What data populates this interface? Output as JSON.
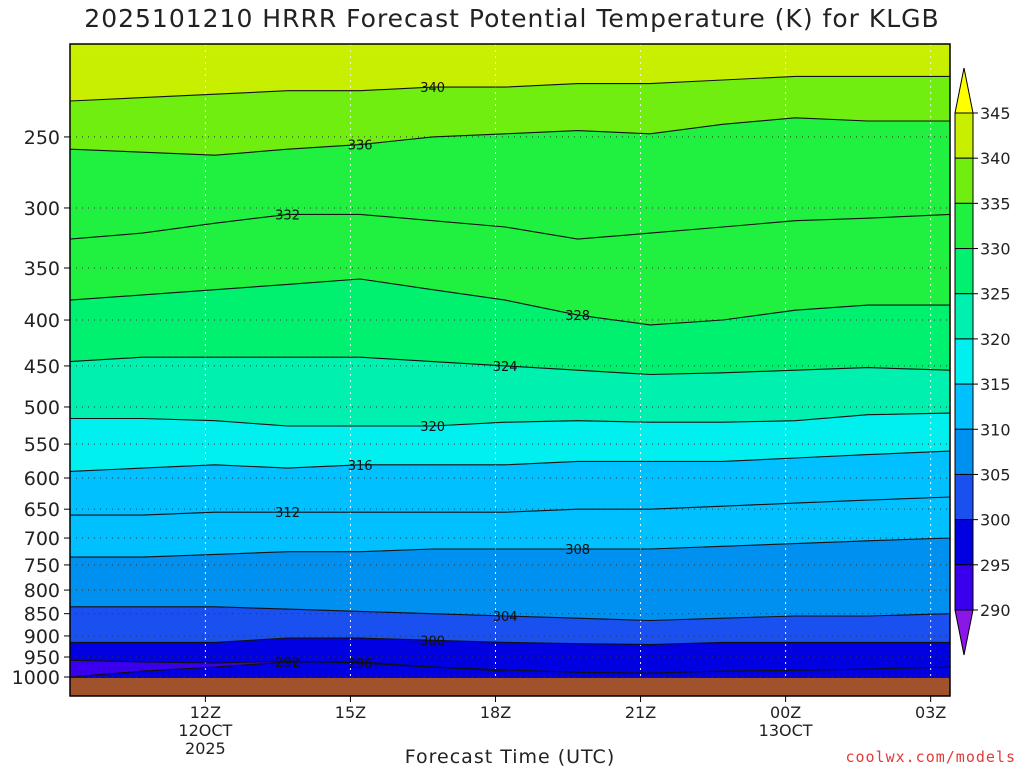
{
  "title": "2025101210 HRRR Forecast Potential Temperature (K) for KLGB",
  "credit": "coolwx.com/models",
  "chart_data": {
    "type": "contour",
    "xlabel": "Forecast Time (UTC)",
    "ylabel": "",
    "x_range_hours": [
      9.2,
      27.4
    ],
    "x_ticks": [
      {
        "hour": 12,
        "label": "12Z",
        "sub": [
          "12OCT",
          "2025"
        ]
      },
      {
        "hour": 15,
        "label": "15Z",
        "sub": []
      },
      {
        "hour": 18,
        "label": "18Z",
        "sub": []
      },
      {
        "hour": 21,
        "label": "21Z",
        "sub": []
      },
      {
        "hour": 24,
        "label": "00Z",
        "sub": [
          "13OCT"
        ]
      },
      {
        "hour": 27,
        "label": "03Z",
        "sub": []
      }
    ],
    "y_scale": "log-pressure",
    "y_range_hpa": [
      1030,
      200
    ],
    "y_ticks": [
      250,
      300,
      350,
      400,
      450,
      500,
      550,
      600,
      650,
      700,
      750,
      800,
      850,
      900,
      950,
      1000
    ],
    "grid": "dotted",
    "colorbar": {
      "levels": [
        290,
        295,
        300,
        305,
        310,
        315,
        320,
        325,
        330,
        335,
        340,
        345
      ],
      "tick_labels": [
        "290",
        "295",
        "300",
        "305",
        "310",
        "315",
        "320",
        "325",
        "330",
        "335",
        "340",
        "345"
      ],
      "colors": [
        "#8a16e8",
        "#3a00ee",
        "#0000e0",
        "#1a50f0",
        "#0090f0",
        "#00c0ff",
        "#00f0f0",
        "#00f0b0",
        "#00f070",
        "#20f040",
        "#70ee10",
        "#c8ef00",
        "#ffff00"
      ]
    },
    "isentropes": [
      {
        "theta": 292,
        "p": [
          1000,
          985,
          975,
          962,
          962,
          975,
          985
        ],
        "label": "292"
      },
      {
        "theta": 296,
        "p": [
          958,
          962,
          965,
          960,
          965,
          975,
          982,
          988,
          990,
          985,
          983,
          980,
          975
        ],
        "label": "296"
      },
      {
        "theta": 300,
        "p": [
          915,
          915,
          915,
          905,
          905,
          910,
          915,
          918,
          920,
          915,
          915,
          915,
          915
        ],
        "label": "300"
      },
      {
        "theta": 304,
        "p": [
          835,
          835,
          835,
          840,
          845,
          850,
          855,
          860,
          865,
          860,
          855,
          855,
          850
        ],
        "label": "304"
      },
      {
        "theta": 308,
        "p": [
          735,
          735,
          730,
          725,
          725,
          720,
          720,
          720,
          720,
          715,
          710,
          705,
          700
        ],
        "label": "308"
      },
      {
        "theta": 312,
        "p": [
          660,
          660,
          655,
          655,
          655,
          655,
          655,
          650,
          650,
          645,
          640,
          635,
          630
        ],
        "label": "312"
      },
      {
        "theta": 316,
        "p": [
          590,
          585,
          580,
          585,
          580,
          580,
          580,
          575,
          575,
          575,
          570,
          565,
          560
        ],
        "label": "316"
      },
      {
        "theta": 320,
        "p": [
          515,
          515,
          518,
          525,
          525,
          525,
          520,
          518,
          520,
          520,
          518,
          510,
          508
        ],
        "label": "320"
      },
      {
        "theta": 324,
        "p": [
          445,
          440,
          440,
          440,
          440,
          445,
          450,
          455,
          460,
          458,
          455,
          452,
          455
        ],
        "label": "324"
      },
      {
        "theta": 328,
        "p": [
          380,
          375,
          370,
          365,
          360,
          370,
          380,
          395,
          405,
          400,
          390,
          385,
          385
        ],
        "label": "328"
      },
      {
        "theta": 332,
        "p": [
          325,
          320,
          312,
          305,
          305,
          310,
          315,
          325,
          320,
          315,
          310,
          308,
          305
        ],
        "label": "332"
      },
      {
        "theta": 336,
        "p": [
          258,
          260,
          262,
          258,
          255,
          250,
          248,
          246,
          248,
          242,
          238,
          240,
          240
        ],
        "label": "336"
      },
      {
        "theta": 340,
        "p": [
          228,
          226,
          224,
          222,
          222,
          220,
          220,
          218,
          218,
          216,
          214,
          214,
          214
        ],
        "label": "340"
      }
    ],
    "isentrope_hours": [
      9.2,
      10.7,
      12.2,
      13.7,
      15.2,
      16.7,
      18.2,
      19.7,
      21.2,
      22.7,
      24.2,
      25.7,
      27.4
    ]
  }
}
